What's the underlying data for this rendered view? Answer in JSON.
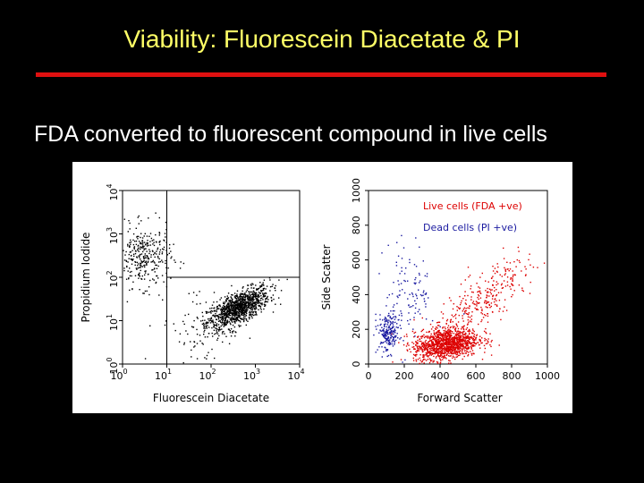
{
  "slide": {
    "title": "Viability: Fluorescein Diacetate & PI",
    "subtitle": "FDA converted to fluorescent compound in live cells",
    "title_color": "#ffff66",
    "rule_color": "#e01010",
    "background": "#000000"
  },
  "chart_data": [
    {
      "type": "scatter",
      "title": "",
      "xlabel": "Fluorescein Diacetate",
      "ylabel": "Propidium Iodide",
      "x_scale": "log",
      "y_scale": "log",
      "xlim": [
        1,
        10000
      ],
      "ylim": [
        1,
        10000
      ],
      "x_ticks": [
        {
          "base": "10",
          "exp": "0"
        },
        {
          "base": "10",
          "exp": "1"
        },
        {
          "base": "10",
          "exp": "2"
        },
        {
          "base": "10",
          "exp": "3"
        },
        {
          "base": "10",
          "exp": "4"
        }
      ],
      "y_ticks": [
        {
          "base": "10",
          "exp": "0"
        },
        {
          "base": "10",
          "exp": "1"
        },
        {
          "base": "10",
          "exp": "2"
        },
        {
          "base": "10",
          "exp": "3"
        },
        {
          "base": "10",
          "exp": "4"
        }
      ],
      "quadrant_gates": {
        "x": 10,
        "y": 100
      },
      "series": [
        {
          "color": "#000000",
          "clusters": [
            {
              "center": [
                400,
                20
              ],
              "spread": [
                0.35,
                0.3
              ],
              "count": 1100
            },
            {
              "center": [
                3,
                300
              ],
              "spread": [
                0.3,
                0.35
              ],
              "count": 320
            },
            {
              "center": [
                60,
                8
              ],
              "spread": [
                0.5,
                0.5
              ],
              "count": 80
            }
          ]
        }
      ]
    },
    {
      "type": "scatter",
      "title": "",
      "xlabel": "Forward Scatter",
      "ylabel": "Side Scatter",
      "xlim": [
        0,
        1000
      ],
      "ylim": [
        0,
        1000
      ],
      "x_ticks": [
        "0",
        "200",
        "400",
        "600",
        "800",
        "1000"
      ],
      "y_ticks": [
        "0",
        "200",
        "400",
        "600",
        "800",
        "1000"
      ],
      "series": [
        {
          "name": "Live cells (FDA +ve)",
          "color": "#dd0000",
          "clusters": [
            {
              "center": [
                430,
                120
              ],
              "spread": [
                90,
                45
              ],
              "count": 1200
            },
            {
              "center": [
                620,
                350
              ],
              "spread": [
                160,
                160
              ],
              "count": 350
            }
          ]
        },
        {
          "name": "Dead cells (PI +ve)",
          "color": "#1a1aa0",
          "clusters": [
            {
              "center": [
                110,
                180
              ],
              "spread": [
                30,
                55
              ],
              "count": 220
            },
            {
              "center": [
                230,
                420
              ],
              "spread": [
                70,
                140
              ],
              "count": 110
            }
          ]
        }
      ]
    }
  ]
}
